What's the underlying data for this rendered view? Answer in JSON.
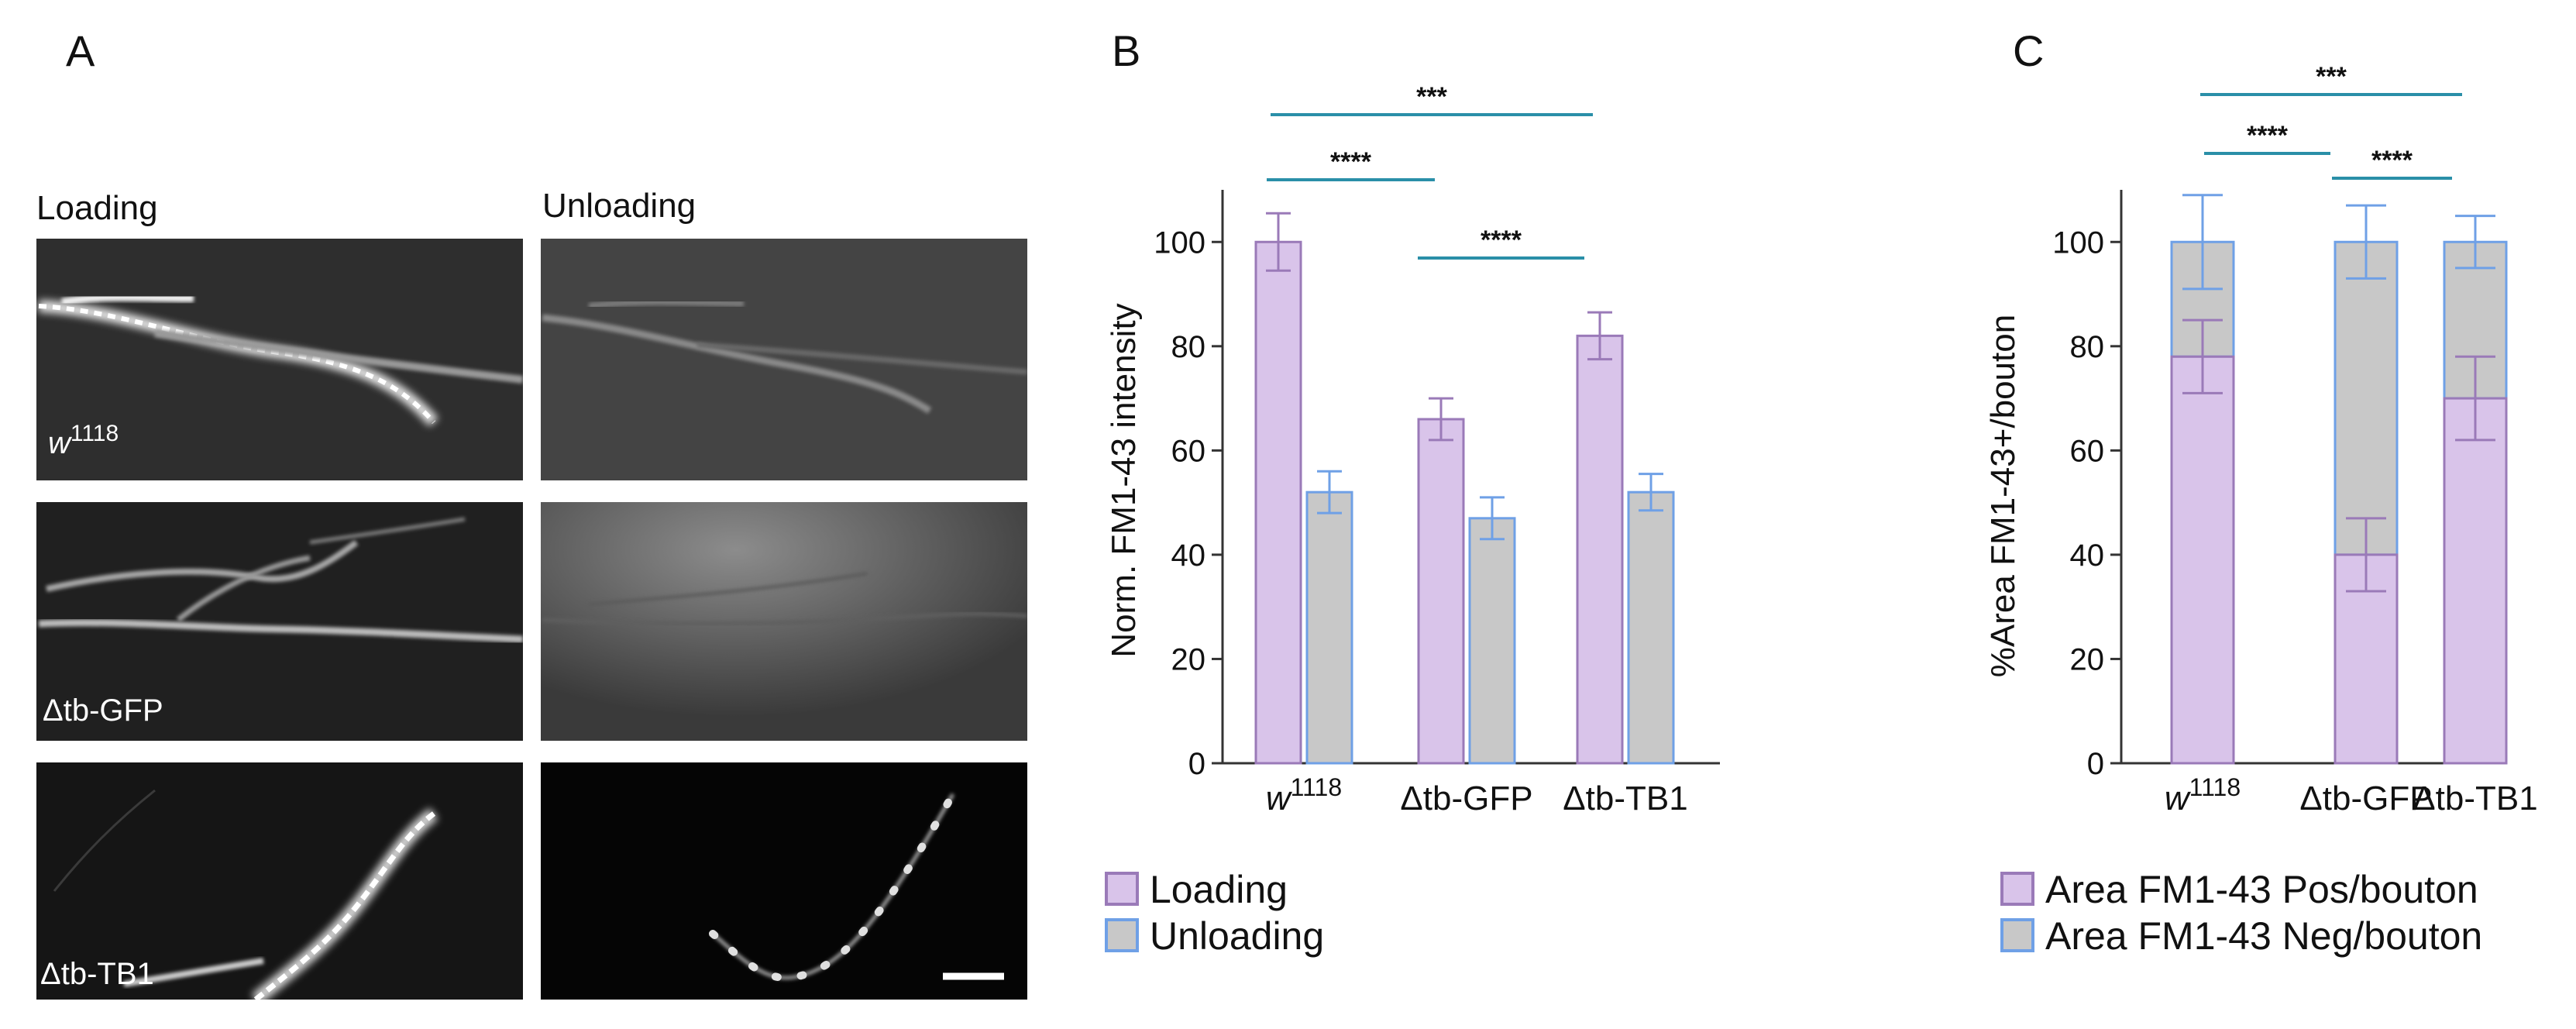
{
  "panel_a": {
    "letter": "A",
    "columns": [
      "Loading",
      "Unloading"
    ],
    "rows": [
      {
        "genotype": "w",
        "superscript": "1118"
      },
      {
        "genotype": "Δtb-GFP",
        "superscript": ""
      },
      {
        "genotype": "Δtb-TB1",
        "superscript": ""
      }
    ]
  },
  "colors": {
    "loading_fill": "#d9c4ea",
    "loading_edge": "#9a7ab8",
    "unloading_fill": "#c8c8c8",
    "unloading_edge": "#6fa0e6",
    "sig_line": "#2a8fa8"
  },
  "chart_data": [
    {
      "type": "bar",
      "panel": "B",
      "ylabel": "Norm. FM1-43 intensity",
      "ylim": [
        0,
        110
      ],
      "yticks": [
        0,
        20,
        40,
        60,
        80,
        100
      ],
      "categories": [
        {
          "name": "w",
          "superscript": "1118"
        },
        {
          "name": "Δtb-GFP",
          "superscript": ""
        },
        {
          "name": "Δtb-TB1",
          "superscript": ""
        }
      ],
      "series": [
        {
          "name": "Loading",
          "values": [
            100,
            66,
            82
          ],
          "errors": [
            5.5,
            4,
            4.5
          ]
        },
        {
          "name": "Unloading",
          "values": [
            52,
            47,
            52
          ],
          "errors": [
            4,
            4,
            3.5
          ]
        }
      ],
      "significance": [
        {
          "from": "w1118-Loading",
          "to": "Δtb-TB1-Loading",
          "label": "***"
        },
        {
          "from": "w1118-Loading",
          "to": "Δtb-GFP-Loading",
          "label": "****"
        },
        {
          "from": "Δtb-GFP-Loading",
          "to": "Δtb-TB1-Loading",
          "label": "****"
        }
      ],
      "legend": {
        "position": "bottom",
        "entries": [
          "Loading",
          "Unloading"
        ]
      }
    },
    {
      "type": "bar",
      "stacked": true,
      "panel": "C",
      "ylabel": "%Area FM1-43+/bouton",
      "ylim": [
        0,
        110
      ],
      "yticks": [
        0,
        20,
        40,
        60,
        80,
        100
      ],
      "categories": [
        {
          "name": "w",
          "superscript": "1118"
        },
        {
          "name": "Δtb-GFP",
          "superscript": ""
        },
        {
          "name": "Δtb-TB1",
          "superscript": ""
        }
      ],
      "series": [
        {
          "name": "Area FM1-43 Pos/bouton",
          "values": [
            78,
            40,
            70
          ],
          "errors": [
            7,
            7,
            8
          ]
        },
        {
          "name": "Area FM1-43 Neg/bouton",
          "values": [
            22,
            60,
            30
          ],
          "errors": [
            9,
            7,
            5
          ]
        }
      ],
      "significance": [
        {
          "from": "w1118",
          "to": "Δtb-TB1",
          "label": "***"
        },
        {
          "from": "w1118",
          "to": "Δtb-GFP",
          "label": "****"
        },
        {
          "from": "Δtb-GFP",
          "to": "Δtb-TB1",
          "label": "****"
        }
      ],
      "legend": {
        "position": "bottom",
        "entries": [
          "Area FM1-43 Pos/bouton",
          "Area FM1-43 Neg/bouton"
        ]
      }
    }
  ]
}
